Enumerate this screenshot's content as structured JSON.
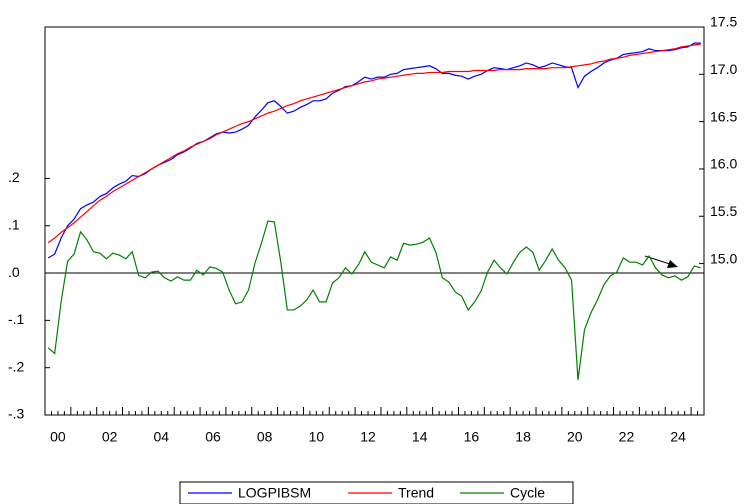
{
  "chart_data": {
    "type": "line",
    "categories": [
      "00",
      null,
      null,
      null,
      null,
      null,
      null,
      null,
      "02",
      null,
      null,
      null,
      null,
      null,
      null,
      null,
      "04",
      null,
      null,
      null,
      null,
      null,
      null,
      null,
      "06",
      null,
      null,
      null,
      null,
      null,
      null,
      null,
      "08",
      null,
      null,
      null,
      null,
      null,
      null,
      null,
      "10",
      null,
      null,
      null,
      null,
      null,
      null,
      null,
      "12",
      null,
      null,
      null,
      null,
      null,
      null,
      null,
      "14",
      null,
      null,
      null,
      null,
      null,
      null,
      null,
      "16",
      null,
      null,
      null,
      null,
      null,
      null,
      null,
      "18",
      null,
      null,
      null,
      null,
      null,
      null,
      null,
      "20",
      null,
      null,
      null,
      null,
      null,
      null,
      null,
      "22",
      null,
      null,
      null,
      null,
      null,
      null,
      null,
      "24",
      null,
      null,
      null,
      null,
      null
    ],
    "series": [
      {
        "name": "LOGPIBSM",
        "color": "#0000ff",
        "axis": "y2",
        "values": [
          15.06,
          15.1,
          15.27,
          15.4,
          15.47,
          15.58,
          15.62,
          15.65,
          15.71,
          15.74,
          15.8,
          15.84,
          15.87,
          15.93,
          15.92,
          15.95,
          16.0,
          16.04,
          16.07,
          16.1,
          16.15,
          16.18,
          16.22,
          16.27,
          16.29,
          16.33,
          16.37,
          16.39,
          16.38,
          16.39,
          16.42,
          16.46,
          16.55,
          16.62,
          16.7,
          16.72,
          16.66,
          16.59,
          16.61,
          16.65,
          16.68,
          16.72,
          16.72,
          16.74,
          16.8,
          16.83,
          16.87,
          16.88,
          16.92,
          16.97,
          16.95,
          16.97,
          16.97,
          17.0,
          17.01,
          17.05,
          17.06,
          17.07,
          17.08,
          17.09,
          17.06,
          17.01,
          17.01,
          16.99,
          16.98,
          16.95,
          16.98,
          17.0,
          17.04,
          17.07,
          17.06,
          17.05,
          17.07,
          17.09,
          17.12,
          17.1,
          17.07,
          17.09,
          17.12,
          17.1,
          17.08,
          17.07,
          16.86,
          16.98,
          17.03,
          17.07,
          17.12,
          17.15,
          17.17,
          17.21,
          17.22,
          17.23,
          17.24,
          17.27,
          17.25,
          17.25,
          17.25,
          17.26,
          17.28,
          17.29,
          17.33,
          17.33
        ]
      },
      {
        "name": "Trend",
        "color": "#ff0000",
        "axis": "y2",
        "values": [
          15.22,
          15.27,
          15.33,
          15.38,
          15.43,
          15.49,
          15.55,
          15.61,
          15.67,
          15.71,
          15.76,
          15.8,
          15.84,
          15.88,
          15.92,
          15.96,
          16.0,
          16.04,
          16.08,
          16.12,
          16.16,
          16.19,
          16.23,
          16.26,
          16.29,
          16.32,
          16.36,
          16.39,
          16.42,
          16.45,
          16.48,
          16.5,
          16.53,
          16.56,
          16.59,
          16.61,
          16.64,
          16.67,
          16.69,
          16.72,
          16.74,
          16.76,
          16.78,
          16.8,
          16.82,
          16.84,
          16.86,
          16.88,
          16.9,
          16.92,
          16.93,
          16.95,
          16.96,
          16.97,
          16.98,
          16.99,
          17.0,
          17.01,
          17.01,
          17.02,
          17.02,
          17.02,
          17.03,
          17.03,
          17.03,
          17.03,
          17.04,
          17.04,
          17.04,
          17.04,
          17.05,
          17.05,
          17.05,
          17.05,
          17.06,
          17.06,
          17.06,
          17.06,
          17.07,
          17.07,
          17.07,
          17.08,
          17.09,
          17.1,
          17.11,
          17.13,
          17.14,
          17.16,
          17.17,
          17.18,
          17.2,
          17.21,
          17.22,
          17.23,
          17.24,
          17.25,
          17.26,
          17.27,
          17.29,
          17.3,
          17.31,
          17.32
        ]
      },
      {
        "name": "Cycle",
        "color": "#008000",
        "values": [
          -0.158,
          -0.17,
          -0.06,
          0.025,
          0.04,
          0.087,
          0.07,
          0.045,
          0.042,
          0.03,
          0.042,
          0.038,
          0.03,
          0.045,
          -0.005,
          -0.01,
          0.002,
          0.004,
          -0.01,
          -0.017,
          -0.008,
          -0.015,
          -0.015,
          0.006,
          -0.004,
          0.013,
          0.01,
          0.002,
          -0.036,
          -0.065,
          -0.061,
          -0.036,
          0.021,
          0.063,
          0.11,
          0.108,
          0.023,
          -0.078,
          -0.078,
          -0.07,
          -0.057,
          -0.036,
          -0.061,
          -0.061,
          -0.021,
          -0.01,
          0.011,
          -0.002,
          0.017,
          0.045,
          0.023,
          0.017,
          0.011,
          0.034,
          0.027,
          0.063,
          0.059,
          0.061,
          0.065,
          0.074,
          0.044,
          -0.01,
          -0.019,
          -0.04,
          -0.049,
          -0.078,
          -0.061,
          -0.038,
          0.002,
          0.027,
          0.011,
          -0.002,
          0.023,
          0.044,
          0.055,
          0.044,
          0.006,
          0.027,
          0.051,
          0.027,
          0.011,
          -0.015,
          -0.226,
          -0.12,
          -0.084,
          -0.057,
          -0.025,
          -0.006,
          0.002,
          0.032,
          0.023,
          0.023,
          0.017,
          0.036,
          0.011,
          -0.004,
          -0.01,
          -0.006,
          -0.015,
          -0.008,
          0.015,
          0.011
        ]
      }
    ],
    "ylim": [
      -0.3,
      0.52
    ],
    "yticks": [
      {
        "value": -0.3,
        "label": "-.3"
      },
      {
        "value": -0.2,
        "label": "-.2"
      },
      {
        "value": -0.1,
        "label": "-.1"
      },
      {
        "value": 0,
        "label": ".0"
      },
      {
        "value": 0.1,
        "label": ".1"
      },
      {
        "value": 0.2,
        "label": ".2"
      }
    ],
    "y2lim": [
      13.4,
      17.5
    ],
    "y2ticks": [
      {
        "value": 15,
        "label": "15.0"
      },
      {
        "value": 15.5,
        "label": "15.5"
      },
      {
        "value": 16,
        "label": "16.0"
      },
      {
        "value": 16.5,
        "label": "16.5"
      },
      {
        "value": 17,
        "label": "17.0"
      },
      {
        "value": 17.5,
        "label": "17.5"
      }
    ],
    "legend": "bottom"
  }
}
